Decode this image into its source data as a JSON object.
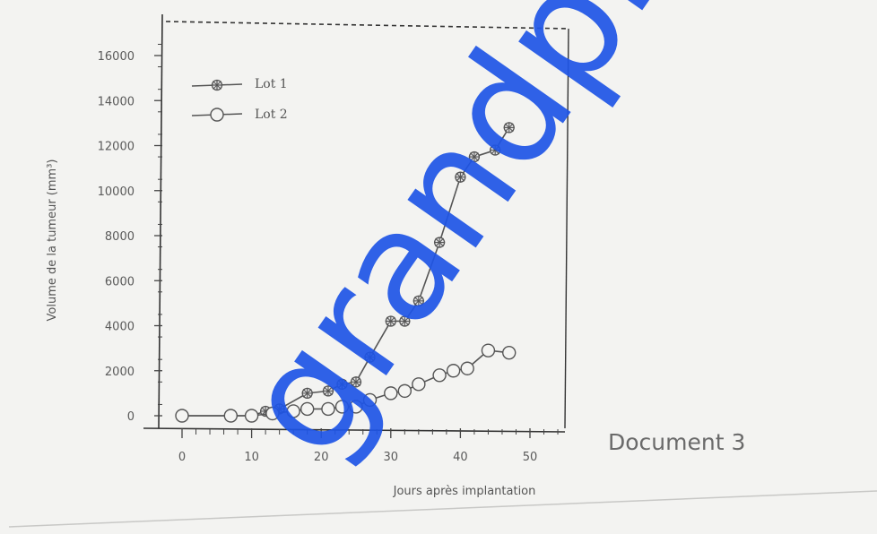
{
  "page": {
    "document_label": "Document 3",
    "watermark": "grandprof"
  },
  "colors": {
    "background": "#f3f3f1",
    "axis": "#444444",
    "series": "#555555",
    "watermark": "#1e55e6"
  },
  "chart_data": {
    "type": "line",
    "title": "",
    "xlabel": "Jours après implantation",
    "ylabel": "Volume de la tumeur (mm³)",
    "xlim": [
      -2,
      55
    ],
    "ylim": [
      -200,
      17500
    ],
    "xticks": [
      0,
      10,
      20,
      30,
      40,
      50
    ],
    "xtick_labels": [
      "0",
      "10",
      "20",
      "30",
      "40",
      "50"
    ],
    "yticks": [
      0,
      2000,
      4000,
      6000,
      8000,
      10000,
      12000,
      14000,
      16000
    ],
    "ytick_labels": [
      "0",
      "2000",
      "4000",
      "6000",
      "8000",
      "10000",
      "12000",
      "14000",
      "16000"
    ],
    "legend_position": "top-left",
    "series": [
      {
        "name": "Lot 1",
        "marker": "star",
        "x": [
          0,
          7,
          10,
          12,
          14,
          18,
          21,
          23,
          25,
          27,
          30,
          32,
          34,
          37,
          40,
          42,
          45,
          47
        ],
        "y": [
          0,
          0,
          0,
          200,
          300,
          1000,
          1100,
          1400,
          1500,
          2600,
          4200,
          4200,
          5100,
          7700,
          10600,
          11500,
          11800,
          12800
        ]
      },
      {
        "name": "Lot 2",
        "marker": "circle",
        "x": [
          0,
          7,
          10,
          13,
          16,
          18,
          21,
          23,
          25,
          27,
          30,
          32,
          34,
          37,
          39,
          41,
          44,
          47
        ],
        "y": [
          0,
          0,
          0,
          100,
          200,
          300,
          300,
          400,
          400,
          700,
          1000,
          1100,
          1400,
          1800,
          2000,
          2100,
          2900,
          2800
        ]
      }
    ]
  }
}
